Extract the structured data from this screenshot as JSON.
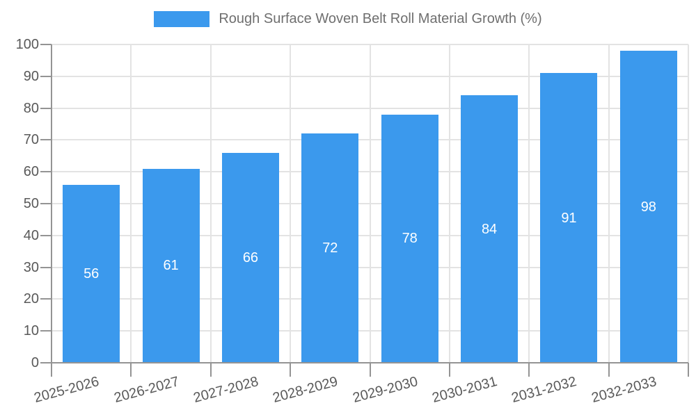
{
  "legend": {
    "label": "Rough Surface Woven Belt Roll Material Growth (%)"
  },
  "chart_data": {
    "type": "bar",
    "title": "Rough Surface Woven Belt Roll Material Growth (%)",
    "categories": [
      "2025-2026",
      "2026-2027",
      "2027-2028",
      "2028-2029",
      "2029-2030",
      "2030-2031",
      "2031-2032",
      "2032-2033"
    ],
    "values": [
      56,
      61,
      66,
      72,
      78,
      84,
      91,
      98
    ],
    "xlabel": "",
    "ylabel": "",
    "ylim": [
      0,
      100
    ],
    "ytick_step": 10,
    "ytick_labels": [
      "0",
      "10",
      "20",
      "30",
      "40",
      "50",
      "60",
      "70",
      "80",
      "90",
      "100"
    ],
    "grid": true,
    "legend_position": "top-center",
    "bar_labels_inside": true,
    "x_label_rotation_deg": -15,
    "colors": {
      "bar": "#3B99ED",
      "bar_label": "#ffffff",
      "axis": "#949494",
      "grid": "#e3e3e3",
      "tick_text": "#595959",
      "title_text": "#6f6f6f",
      "background": "#ffffff"
    }
  }
}
